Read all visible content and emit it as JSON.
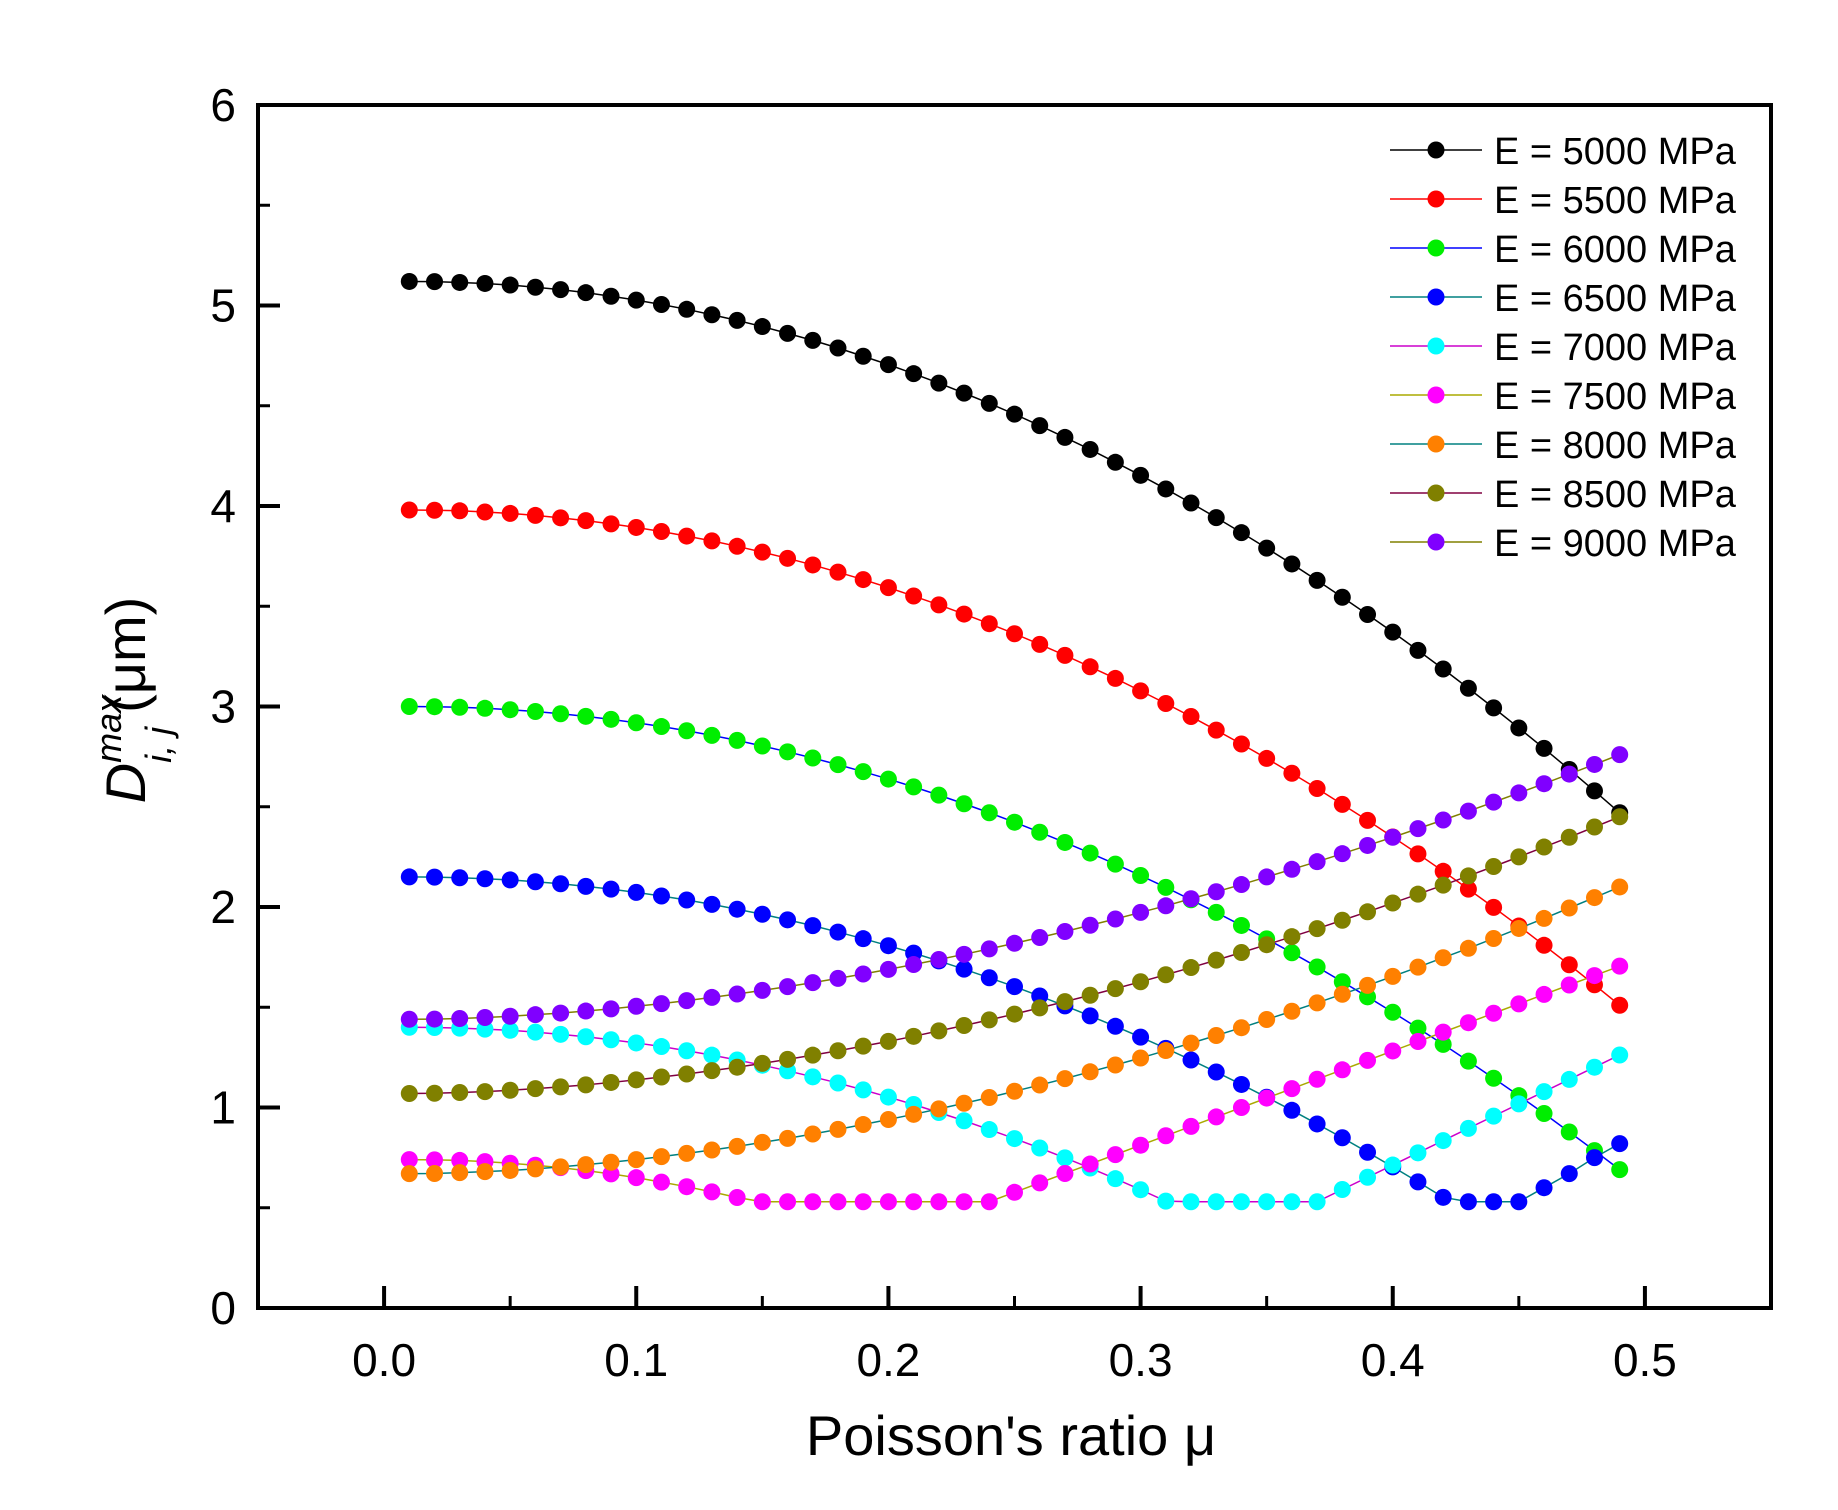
{
  "chart_data": {
    "type": "line",
    "title": "",
    "xlabel": "Poisson's ratio μ",
    "ylabel": {
      "base": "D",
      "superscript": "max",
      "subscript": "i, j",
      "unit": "(μm)"
    },
    "xlim": [
      -0.05,
      0.55
    ],
    "ylim": [
      0,
      6
    ],
    "xticks": [
      0.0,
      0.1,
      0.2,
      0.3,
      0.4,
      0.5
    ],
    "xtick_labels": [
      "0.0",
      "0.1",
      "0.2",
      "0.3",
      "0.4",
      "0.5"
    ],
    "yticks": [
      0,
      1,
      2,
      3,
      4,
      5,
      6
    ],
    "ytick_labels": [
      "0",
      "1",
      "2",
      "3",
      "4",
      "5",
      "6"
    ],
    "grid": false,
    "legend_position": "top-right",
    "x": [
      0.01,
      0.02,
      0.03,
      0.04,
      0.05,
      0.06,
      0.07,
      0.08,
      0.09,
      0.1,
      0.11,
      0.12,
      0.13,
      0.14,
      0.15,
      0.16,
      0.17,
      0.18,
      0.19,
      0.2,
      0.21,
      0.22,
      0.23,
      0.24,
      0.25,
      0.26,
      0.27,
      0.28,
      0.29,
      0.3,
      0.31,
      0.32,
      0.33,
      0.34,
      0.35,
      0.36,
      0.37,
      0.38,
      0.39,
      0.4,
      0.41,
      0.42,
      0.43,
      0.44,
      0.45,
      0.46,
      0.47,
      0.48,
      0.49
    ],
    "series": [
      {
        "name": "E = 5000 MPa",
        "color": "#000000",
        "line_color": "#000000",
        "a": 5.12,
        "b": 2.47
      },
      {
        "name": "E = 5500 MPa",
        "color": "#ff0000",
        "line_color": "#ff0000",
        "a": 3.98,
        "b": 1.51
      },
      {
        "name": "E = 6000 MPa",
        "color": "#00ee00",
        "line_color": "#0000ff",
        "a": 3.0,
        "b": 0.69
      },
      {
        "name": "E = 6500 MPa",
        "color": "#0000ff",
        "line_color": "#008080",
        "a": 2.15,
        "b": -0.04,
        "floor": 0.53,
        "end": [
          0.6,
          0.67,
          0.75,
          0.82
        ]
      },
      {
        "name": "E = 7000 MPa",
        "color": "#00ffff",
        "line_color": "#cc00cc",
        "a": 1.4,
        "b": -0.82,
        "floor": 0.53,
        "end_start": 0.37,
        "end_slope": 6.1
      },
      {
        "name": "E = 7500 MPa",
        "color": "#ff00ff",
        "line_color": "#aaaa00",
        "a": 0.74,
        "b": -1.83,
        "floor": 0.53,
        "end_start": 0.24,
        "end_slope": 4.7
      },
      {
        "name": "E = 8000 MPa",
        "color": "#ff8000",
        "line_color": "#008080",
        "a": 0.67,
        "b": 2.1,
        "rise": true
      },
      {
        "name": "E = 8500 MPa",
        "color": "#808000",
        "line_color": "#800040",
        "a": 1.07,
        "b": 2.45,
        "rise": true
      },
      {
        "name": "E = 9000 MPa",
        "color": "#8000ff",
        "line_color": "#808000",
        "a": 1.44,
        "b": 2.76,
        "rise": true
      }
    ]
  }
}
